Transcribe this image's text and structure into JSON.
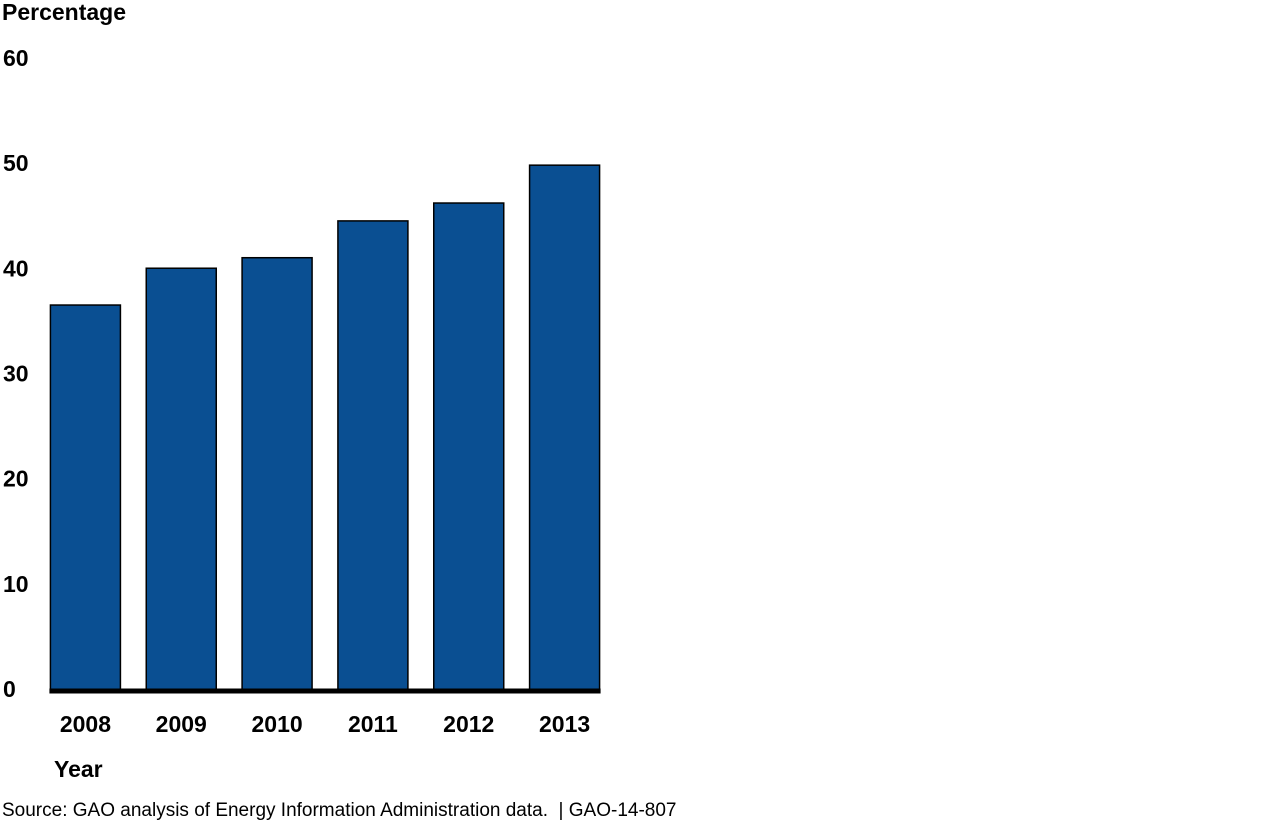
{
  "chart_data": {
    "type": "bar",
    "y_label": "Percentage",
    "x_label": "Year",
    "source": "Source: GAO analysis of Energy Information Administration data.  | GAO-14-807",
    "categories": [
      "2008",
      "2009",
      "2010",
      "2011",
      "2012",
      "2013"
    ],
    "values": [
      36.7,
      40.2,
      41.2,
      44.7,
      46.4,
      50.0
    ],
    "color": "#0a4f92",
    "ylim": [
      0,
      60
    ],
    "yticks": [
      0,
      10,
      20,
      30,
      40,
      50,
      60
    ],
    "grid": false
  }
}
